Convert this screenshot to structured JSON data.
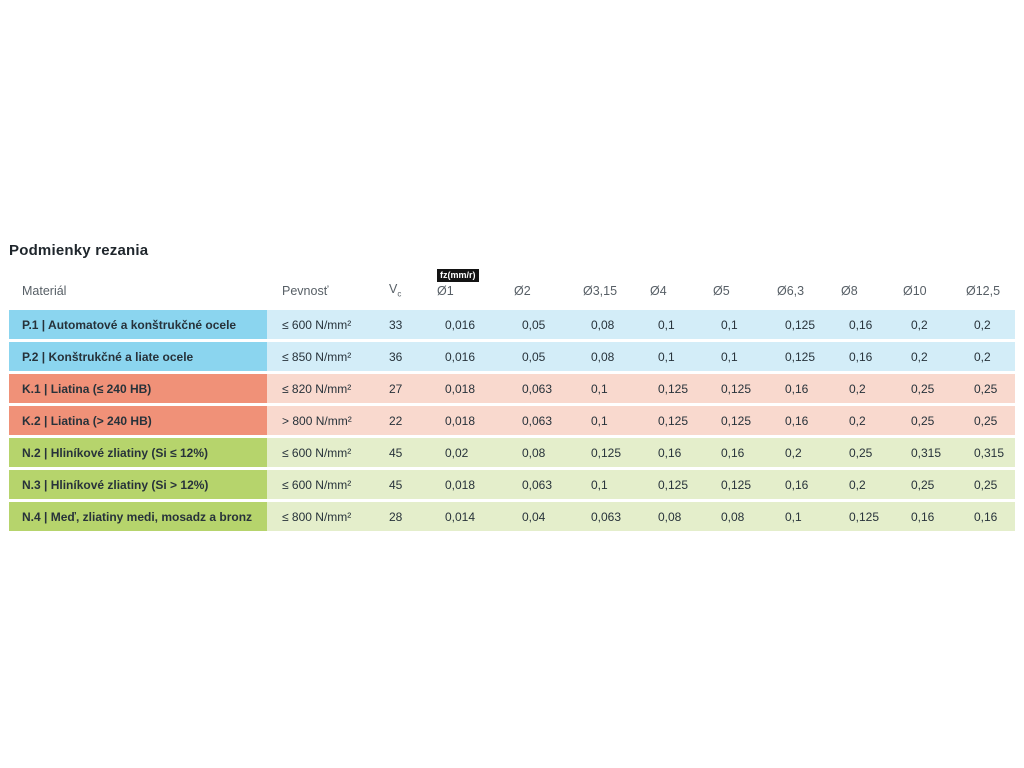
{
  "title": "Podmienky rezania",
  "table": {
    "badge": "fz(mm/r)",
    "headers": {
      "material": "Materiál",
      "strength": "Pevnosť",
      "vc_main": "V",
      "vc_sub": "c",
      "diameters": [
        "Ø1",
        "Ø2",
        "Ø3,15",
        "Ø4",
        "Ø5",
        "Ø6,3",
        "Ø8",
        "Ø10",
        "Ø12,5"
      ]
    },
    "rows": [
      {
        "group": "blue",
        "material": "P.1 | Automatové a konštrukčné ocele",
        "strength": "≤ 600 N/mm²",
        "vc": "33",
        "values": [
          "0,016",
          "0,05",
          "0,08",
          "0,1",
          "0,1",
          "0,125",
          "0,16",
          "0,2",
          "0,2"
        ]
      },
      {
        "group": "blue",
        "material": "P.2 | Konštrukčné a liate ocele",
        "strength": "≤ 850 N/mm²",
        "vc": "36",
        "values": [
          "0,016",
          "0,05",
          "0,08",
          "0,1",
          "0,1",
          "0,125",
          "0,16",
          "0,2",
          "0,2"
        ]
      },
      {
        "group": "salmon",
        "material": "K.1 | Liatina (≤ 240 HB)",
        "strength": "≤ 820 N/mm²",
        "vc": "27",
        "values": [
          "0,018",
          "0,063",
          "0,1",
          "0,125",
          "0,125",
          "0,16",
          "0,2",
          "0,25",
          "0,25"
        ]
      },
      {
        "group": "salmon",
        "material": "K.2 | Liatina (> 240 HB)",
        "strength": "> 800 N/mm²",
        "vc": "22",
        "values": [
          "0,018",
          "0,063",
          "0,1",
          "0,125",
          "0,125",
          "0,16",
          "0,2",
          "0,25",
          "0,25"
        ]
      },
      {
        "group": "green",
        "material": "N.2 | Hliníkové zliatiny (Si ≤ 12%)",
        "strength": "≤ 600 N/mm²",
        "vc": "45",
        "values": [
          "0,02",
          "0,08",
          "0,125",
          "0,16",
          "0,16",
          "0,2",
          "0,25",
          "0,315",
          "0,315"
        ]
      },
      {
        "group": "green",
        "material": "N.3 | Hliníkové zliatiny (Si > 12%)",
        "strength": "≤ 600 N/mm²",
        "vc": "45",
        "values": [
          "0,018",
          "0,063",
          "0,1",
          "0,125",
          "0,125",
          "0,16",
          "0,2",
          "0,25",
          "0,25"
        ]
      },
      {
        "group": "green",
        "material": "N.4 | Meď, zliatiny medi, mosadz a bronz",
        "strength": "≤ 800 N/mm²",
        "vc": "28",
        "values": [
          "0,014",
          "0,04",
          "0,063",
          "0,08",
          "0,08",
          "0,1",
          "0,125",
          "0,16",
          "0,16"
        ]
      }
    ]
  },
  "colors": {
    "blue_dark": "#8bd5ef",
    "blue_light": "#d3edf8",
    "salmon_dark": "#f09178",
    "salmon_light": "#f9d9ce",
    "green_dark": "#b6d46c",
    "green_light": "#e4eecb",
    "badge_bg": "#131313",
    "badge_text": "#ffffff",
    "cell_text": "#27323a",
    "header_text": "#575f66",
    "page_bg": "#ffffff"
  }
}
